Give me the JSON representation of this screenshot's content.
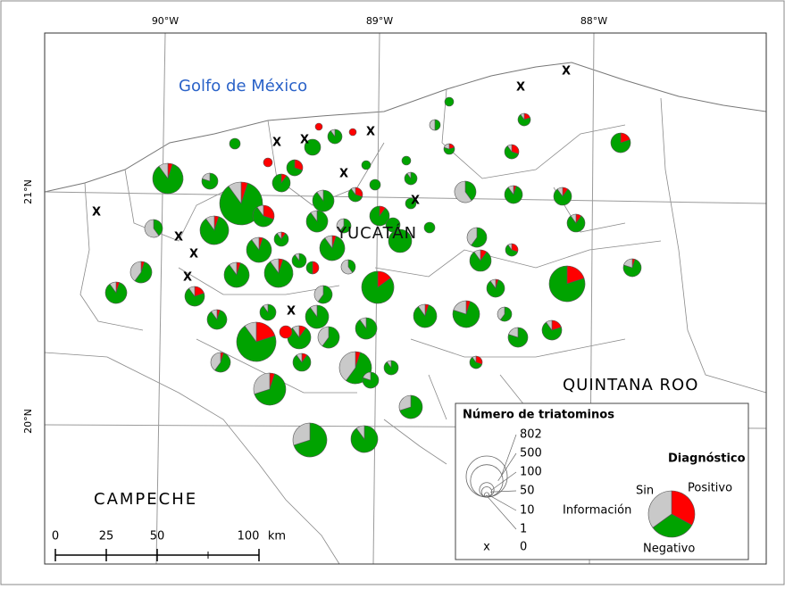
{
  "map": {
    "graticule": {
      "longitudes": [
        "90°W",
        "89°W",
        "88°W"
      ],
      "latitudes": [
        "21°N",
        "20°N"
      ]
    },
    "labels": {
      "sea": "Golfo de México",
      "yucatan": "YUCATÁN",
      "quintana_roo": "QUINTANA ROO",
      "campeche": "CAMPECHE"
    },
    "no_data_symbol": "X",
    "scale_bar": {
      "ticks": [
        0,
        25,
        50,
        100
      ],
      "unit": "km"
    },
    "legend": {
      "title": "Número de triatominos",
      "sizes": [
        802,
        500,
        100,
        50,
        10,
        1,
        0
      ],
      "zero_symbol": "x",
      "diagnosis_title": "Diagnóstico",
      "classes": {
        "unknown_1": "Sin",
        "unknown_2": "Información",
        "positive": "Positivo",
        "negative": "Negativo"
      }
    }
  }
}
